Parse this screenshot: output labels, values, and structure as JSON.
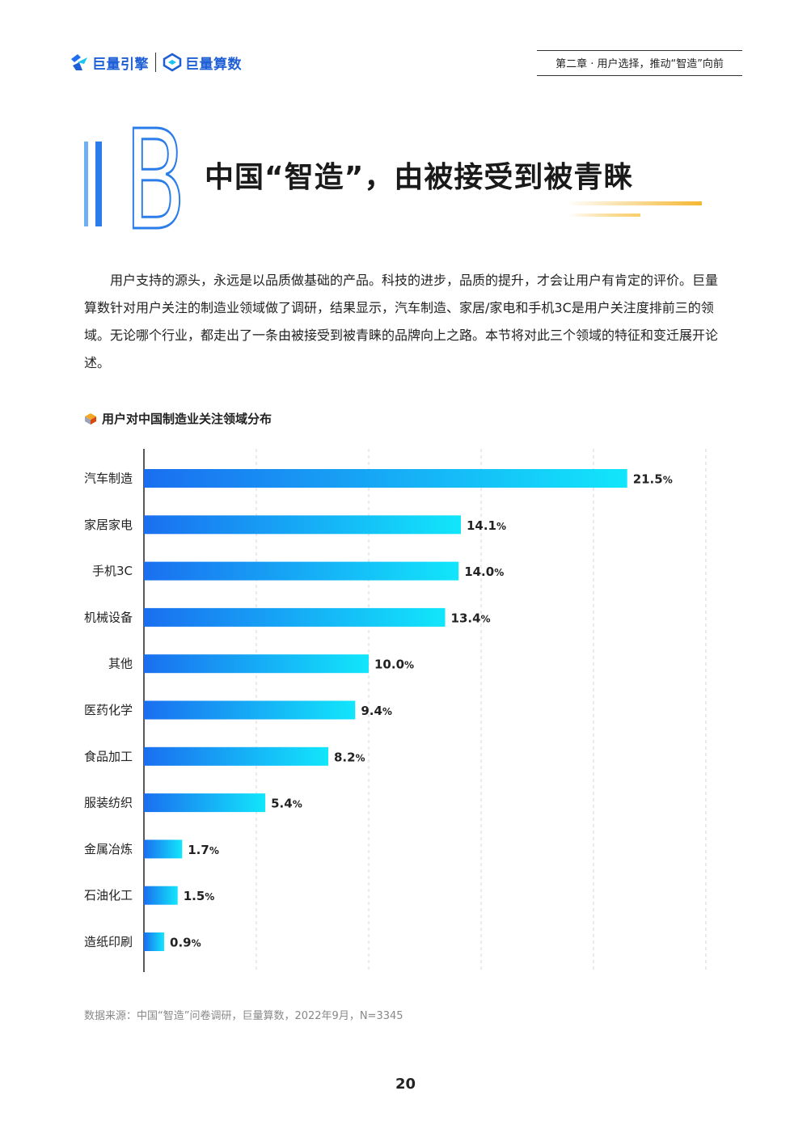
{
  "header": {
    "brand_left": "巨量引擎",
    "brand_right": "巨量算数",
    "chapter": "第二章 · 用户选择，推动“智造”向前",
    "brand_color": "#1f5fd6"
  },
  "section": {
    "letter": "B",
    "title": "中国“智造”，由被接受到被青睐",
    "accent": "#2b7de9",
    "deco_color": "#f5b731"
  },
  "intro": "用户支持的源头，永远是以品质做基础的产品。科技的进步，品质的提升，才会让用户有肯定的评价。巨量算数针对用户关注的制造业领域做了调研，结果显示，汽车制造、家居/家电和手机3C是用户关注度排前三的领域。无论哪个行业，都走出了一条由被接受到被青睐的品牌向上之路。本节将对此三个领域的特征和变迁展开论述。",
  "chart_data": {
    "type": "bar",
    "orientation": "horizontal",
    "title": "用户对中国制造业关注领域分布",
    "categories": [
      "汽车制造",
      "家居家电",
      "手机3C",
      "机械设备",
      "其他",
      "医药化学",
      "食品加工",
      "服装纺织",
      "金属冶炼",
      "石油化工",
      "造纸印刷"
    ],
    "values": [
      21.5,
      14.1,
      14.0,
      13.4,
      10.0,
      9.4,
      8.2,
      5.4,
      1.7,
      1.5,
      0.9
    ],
    "labels": [
      "21.5",
      "14.1",
      "14.0",
      "13.4",
      "10.0",
      "9.4",
      "8.2",
      "5.4",
      "1.7",
      "1.5",
      "0.9"
    ],
    "unit": "%",
    "xlim": [
      0,
      25
    ],
    "grid": true,
    "bar_gradient": [
      "#1a6ff0",
      "#12e6fb"
    ]
  },
  "source": "数据来源：中国“智造”问卷调研，巨量算数，2022年9月，N=3345",
  "page_number": "20"
}
